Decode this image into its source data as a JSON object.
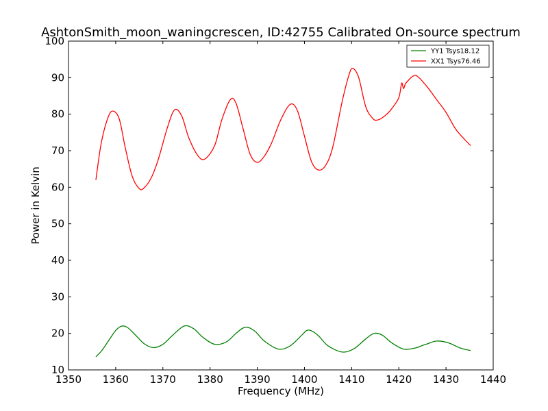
{
  "chart_data": {
    "type": "line",
    "title": "AshtonSmith_moon_waningcrescen, ID:42755 Calibrated On-source spectrum",
    "xlabel": "Frequency (MHz)",
    "ylabel": "Power in Kelvin",
    "xlim": [
      1350,
      1440
    ],
    "ylim": [
      10,
      100
    ],
    "xticks": [
      1350,
      1360,
      1370,
      1380,
      1390,
      1400,
      1410,
      1420,
      1430,
      1440
    ],
    "yticks": [
      10,
      20,
      30,
      40,
      50,
      60,
      70,
      80,
      90,
      100
    ],
    "grid": false,
    "legend_position": "top-right",
    "series": [
      {
        "name": "YY1 Tsys18.12",
        "color": "#008000",
        "x": [
          1355.8,
          1357.0,
          1358.5,
          1360.0,
          1361.3,
          1362.5,
          1364.0,
          1366.0,
          1368.0,
          1370.0,
          1372.0,
          1374.5,
          1376.5,
          1378.5,
          1381.0,
          1383.5,
          1385.5,
          1387.5,
          1389.5,
          1391.5,
          1394.5,
          1397.0,
          1399.5,
          1400.5,
          1401.5,
          1403.0,
          1405.0,
          1408.0,
          1410.5,
          1413.0,
          1414.8,
          1416.5,
          1418.5,
          1421.0,
          1423.5,
          1425.0,
          1426.0,
          1428.0,
          1430.5,
          1433.0,
          1435.2
        ],
        "values": [
          13.6,
          15.2,
          18.0,
          20.8,
          22.0,
          21.6,
          19.8,
          17.2,
          16.1,
          17.0,
          19.4,
          22.0,
          21.3,
          18.9,
          17.0,
          17.7,
          20.0,
          21.7,
          20.6,
          17.9,
          15.7,
          16.6,
          19.6,
          20.8,
          20.7,
          19.3,
          16.6,
          14.9,
          15.8,
          18.5,
          20.0,
          19.5,
          17.4,
          15.7,
          16.0,
          16.7,
          17.1,
          17.9,
          17.4,
          16.0,
          15.3
        ]
      },
      {
        "name": "XX1 Tsys76.46",
        "color": "#ff0000",
        "x": [
          1355.8,
          1357.0,
          1358.5,
          1359.6,
          1360.8,
          1362.0,
          1363.5,
          1365.0,
          1366.0,
          1367.5,
          1369.0,
          1371.0,
          1372.5,
          1374.0,
          1375.5,
          1377.5,
          1379.0,
          1381.0,
          1382.5,
          1384.3,
          1385.5,
          1387.0,
          1388.5,
          1390.0,
          1391.5,
          1393.0,
          1395.0,
          1397.0,
          1398.5,
          1400.0,
          1401.5,
          1403.0,
          1404.5,
          1406.0,
          1408.0,
          1409.5,
          1410.3,
          1411.5,
          1413.0,
          1414.5,
          1415.5,
          1417.0,
          1418.5,
          1420.0,
          1420.6,
          1421.0,
          1421.5,
          1423.0,
          1424.0,
          1426.0,
          1428.0,
          1430.0,
          1432.0,
          1434.0,
          1435.2
        ],
        "values": [
          62.0,
          72.5,
          79.5,
          80.8,
          78.5,
          71.0,
          63.0,
          59.6,
          59.8,
          62.5,
          67.5,
          76.5,
          81.2,
          79.5,
          73.5,
          68.5,
          67.8,
          71.5,
          78.5,
          84.0,
          83.0,
          76.0,
          69.0,
          66.8,
          68.5,
          72.0,
          78.5,
          82.7,
          81.0,
          74.0,
          67.0,
          64.7,
          66.0,
          71.0,
          83.5,
          91.0,
          92.5,
          90.0,
          82.0,
          78.8,
          78.4,
          79.5,
          81.5,
          84.5,
          88.5,
          87.0,
          88.5,
          90.4,
          90.3,
          87.5,
          84.0,
          80.5,
          76.0,
          73.0,
          71.4
        ]
      }
    ]
  }
}
